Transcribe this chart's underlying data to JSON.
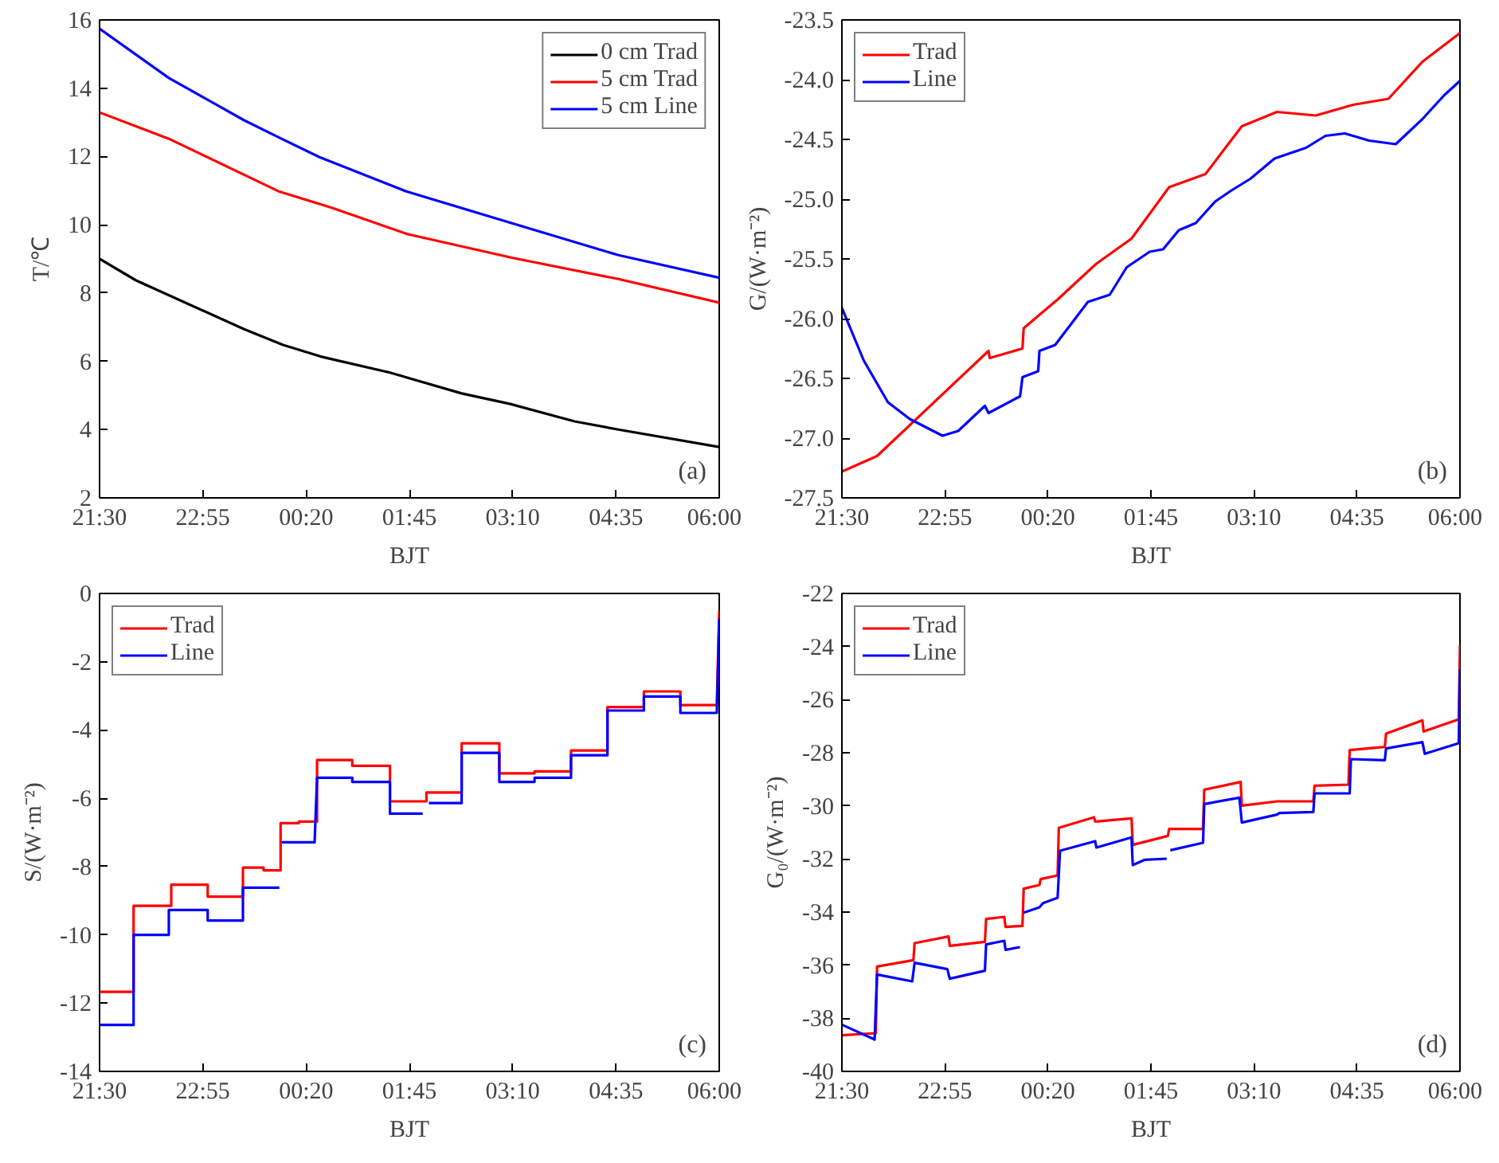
{
  "chart_data": [
    {
      "type": "line",
      "xlabel": "BJT",
      "ylabel": "T/℃",
      "annotations": [
        "(a)"
      ],
      "legend": "top right",
      "grid": false,
      "xlim": [
        "2000-01-01T21:30",
        "2000-01-02T06:00"
      ],
      "xticks": [
        {
          "value": "2000-01-01T21:30",
          "label": "21:30"
        },
        {
          "value": "2000-01-01T22:55",
          "label": "22:55"
        },
        {
          "value": "2000-01-02T00:20",
          "label": "00:20"
        },
        {
          "value": "2000-01-02T01:45",
          "label": "01:45"
        },
        {
          "value": "2000-01-02T03:10",
          "label": "03:10"
        },
        {
          "value": "2000-01-02T04:35",
          "label": "04:35"
        },
        {
          "value": "2000-01-02T06:00",
          "label": "06:00"
        }
      ],
      "ylim": [
        2,
        16
      ],
      "yticks": [
        2,
        4,
        6,
        8,
        10,
        12,
        14,
        16
      ],
      "series": [
        {
          "name": "0 cm Trad",
          "color": "#000000",
          "x": [
            "2000-01-01T21:30",
            "2000-01-01T22:00",
            "2000-01-01T23:29",
            "2000-01-02T00:01",
            "2000-01-02T00:32",
            "2000-01-02T01:29",
            "2000-01-02T02:28",
            "2000-01-02T03:08",
            "2000-01-02T04:01",
            "2000-01-02T04:37",
            "2000-01-02T06:00"
          ],
          "values": [
            9.0,
            8.37,
            6.94,
            6.48,
            6.14,
            5.67,
            5.06,
            4.75,
            4.24,
            4.0,
            3.49
          ]
        },
        {
          "name": "5 cm Trad",
          "color": "#ff0000",
          "x": [
            "2000-01-01T21:30",
            "2000-01-01T22:27",
            "2000-01-01T23:58",
            "2000-01-02T00:41",
            "2000-01-02T01:43",
            "2000-01-02T03:10",
            "2000-01-02T04:37",
            "2000-01-02T06:00"
          ],
          "values": [
            13.29,
            12.52,
            10.97,
            10.5,
            9.73,
            9.03,
            8.41,
            7.72
          ]
        },
        {
          "name": "5 cm Line",
          "color": "#0000ff",
          "x": [
            "2000-01-01T21:30",
            "2000-01-01T22:27",
            "2000-01-01T23:29",
            "2000-01-01T23:58",
            "2000-01-02T00:31",
            "2000-01-02T01:43",
            "2000-01-02T03:10",
            "2000-01-02T04:37",
            "2000-01-02T06:00"
          ],
          "values": [
            15.74,
            14.3,
            13.06,
            12.55,
            11.98,
            10.97,
            10.04,
            9.11,
            8.45
          ]
        }
      ]
    },
    {
      "type": "line",
      "xlabel": "BJT",
      "ylabel": "G/(W·m⁻²)",
      "annotations": [
        "(b)"
      ],
      "legend": "top left",
      "grid": false,
      "xlim": [
        "2000-01-01T21:30",
        "2000-01-02T06:00"
      ],
      "xticks": [
        {
          "value": "2000-01-01T21:30",
          "label": "21:30"
        },
        {
          "value": "2000-01-01T22:55",
          "label": "22:55"
        },
        {
          "value": "2000-01-02T00:20",
          "label": "00:20"
        },
        {
          "value": "2000-01-02T01:45",
          "label": "01:45"
        },
        {
          "value": "2000-01-02T03:10",
          "label": "03:10"
        },
        {
          "value": "2000-01-02T04:35",
          "label": "04:35"
        },
        {
          "value": "2000-01-02T06:00",
          "label": "06:00"
        }
      ],
      "ylim": [
        -27.5,
        -23.5
      ],
      "yticks": [
        {
          "value": -27.5,
          "label": "-27.5"
        },
        {
          "value": -27,
          "label": "-27.0"
        },
        {
          "value": -26.5,
          "label": "-26.5"
        },
        {
          "value": -26,
          "label": "-26.0"
        },
        {
          "value": -25.5,
          "label": "-25.5"
        },
        {
          "value": -25,
          "label": "-25.0"
        },
        {
          "value": -24.5,
          "label": "-24.5"
        },
        {
          "value": -24,
          "label": "-24.0"
        },
        {
          "value": -23.5,
          "label": "-23.5"
        }
      ],
      "series": [
        {
          "name": "Trad",
          "color": "#ff0000",
          "x": [
            "2000-01-01T21:30",
            "2000-01-01T21:59",
            "2000-01-01T23:31",
            "2000-01-01T23:32",
            "2000-01-01T23:59",
            "2000-01-02T00:00",
            "2000-01-02T00:28",
            "2000-01-02T01:00",
            "2000-01-02T01:29",
            "2000-01-02T02:00",
            "2000-01-02T02:30",
            "2000-01-02T03:00",
            "2000-01-02T03:29",
            "2000-01-02T04:01",
            "2000-01-02T04:32",
            "2000-01-02T05:01",
            "2000-01-02T05:29",
            "2000-01-02T06:00"
          ],
          "values": [
            -27.28,
            -27.15,
            -26.27,
            -26.33,
            -26.25,
            -26.08,
            -25.84,
            -25.54,
            -25.33,
            -24.9,
            -24.79,
            -24.39,
            -24.27,
            -24.3,
            -24.21,
            -24.16,
            -23.85,
            -23.61
          ]
        },
        {
          "name": "Line",
          "color": "#0000ff",
          "x": [
            "2000-01-01T21:30",
            "2000-01-01T21:48",
            "2000-01-01T22:08",
            "2000-01-01T22:26",
            "2000-01-01T22:53",
            "2000-01-01T23:06",
            "2000-01-01T23:28",
            "2000-01-01T23:31",
            "2000-01-01T23:57",
            "2000-01-01T23:59",
            "2000-01-02T00:12",
            "2000-01-02T00:13",
            "2000-01-02T00:26",
            "2000-01-02T00:53",
            "2000-01-02T01:11",
            "2000-01-02T01:25",
            "2000-01-02T01:44",
            "2000-01-02T01:55",
            "2000-01-02T02:08",
            "2000-01-02T02:22",
            "2000-01-02T02:38",
            "2000-01-02T02:51",
            "2000-01-02T03:07",
            "2000-01-02T03:27",
            "2000-01-02T03:53",
            "2000-01-02T04:09",
            "2000-01-02T04:25",
            "2000-01-02T04:45",
            "2000-01-02T05:07",
            "2000-01-02T05:29",
            "2000-01-02T05:47",
            "2000-01-02T06:00"
          ],
          "values": [
            -25.91,
            -26.35,
            -26.7,
            -26.84,
            -26.98,
            -26.94,
            -26.73,
            -26.79,
            -26.65,
            -26.49,
            -26.44,
            -26.27,
            -26.22,
            -25.86,
            -25.8,
            -25.57,
            -25.44,
            -25.42,
            -25.26,
            -25.2,
            -25.02,
            -24.93,
            -24.83,
            -24.66,
            -24.57,
            -24.47,
            -24.45,
            -24.51,
            -24.54,
            -24.33,
            -24.13,
            -24.01
          ]
        }
      ]
    },
    {
      "type": "line",
      "xlabel": "BJT",
      "ylabel": "S/(W·m⁻²)",
      "annotations": [
        "(c)"
      ],
      "legend": "top left",
      "grid": false,
      "xlim": [
        "2000-01-01T21:30",
        "2000-01-02T06:00"
      ],
      "xticks": [
        {
          "value": "2000-01-01T21:30",
          "label": "21:30"
        },
        {
          "value": "2000-01-01T22:55",
          "label": "22:55"
        },
        {
          "value": "2000-01-02T00:20",
          "label": "00:20"
        },
        {
          "value": "2000-01-02T01:45",
          "label": "01:45"
        },
        {
          "value": "2000-01-02T03:10",
          "label": "03:10"
        },
        {
          "value": "2000-01-02T04:35",
          "label": "04:35"
        },
        {
          "value": "2000-01-02T06:00",
          "label": "06:00"
        }
      ],
      "ylim": [
        -14,
        0
      ],
      "yticks": [
        -14,
        -12,
        -10,
        -8,
        -6,
        -4,
        -2,
        0
      ],
      "series": [
        {
          "name": "Trad",
          "color": "#ff0000",
          "x": [
            "2000-01-01T21:30",
            "2000-01-01T21:58",
            "2000-01-01T21:58",
            "2000-01-01T22:29",
            "2000-01-01T22:29",
            "2000-01-01T22:59",
            "2000-01-01T22:59",
            "2000-01-01T23:28",
            "2000-01-01T23:28",
            "2000-01-01T23:45",
            "2000-01-01T23:45",
            "2000-01-01T23:59",
            "2000-01-01T23:59",
            "2000-01-02T00:14",
            "2000-01-02T00:14",
            "2000-01-02T00:29",
            "2000-01-02T00:29",
            "2000-01-02T00:58",
            "2000-01-02T00:58",
            "2000-01-02T01:29",
            "2000-01-02T01:29",
            "2000-01-02T01:59",
            "2000-01-02T01:59",
            "2000-01-02T02:28",
            "2000-01-02T02:28",
            "2000-01-02T02:59",
            "2000-01-02T02:59",
            "2000-01-02T03:28",
            "2000-01-02T03:28",
            "2000-01-02T03:58",
            "2000-01-02T03:58",
            "2000-01-02T04:28",
            "2000-01-02T04:28",
            "2000-01-02T04:58",
            "2000-01-02T04:58",
            "2000-01-02T05:28",
            "2000-01-02T05:28",
            "2000-01-02T05:58",
            "2000-01-02T06:00"
          ],
          "values": [
            -11.67,
            -11.67,
            -9.15,
            -9.15,
            -8.53,
            -8.53,
            -8.88,
            -8.88,
            -8.03,
            -8.03,
            -8.11,
            -8.11,
            -6.73,
            -6.73,
            -6.68,
            -6.68,
            -4.88,
            -4.88,
            -5.05,
            -5.05,
            -6.09,
            -6.09,
            -5.83,
            -5.83,
            -4.39,
            -4.39,
            -5.27,
            -5.27,
            -5.21,
            -5.21,
            -4.6,
            -4.6,
            -3.33,
            -3.33,
            -2.87,
            -2.87,
            -3.27,
            -3.27,
            -0.51
          ]
        },
        {
          "name": "Line",
          "color": "#0000ff",
          "x": [
            "2000-01-01T21:30",
            "2000-01-01T21:58",
            "2000-01-01T21:58",
            "2000-01-01T22:27",
            "2000-01-01T22:27",
            "2000-01-01T22:59",
            "2000-01-01T22:59",
            "2000-01-01T23:28",
            "2000-01-01T23:28",
            "2000-01-01T23:58",
            "2000-01-01T23:59",
            "2000-01-02T00:00",
            "2000-01-02T00:27",
            "2000-01-02T00:29",
            "2000-01-02T00:58",
            "2000-01-02T00:58",
            "2000-01-02T01:29",
            "2000-01-02T01:29",
            "2000-01-02T01:56",
            "2000-01-02T01:57",
            "2000-01-02T02:01",
            "2000-01-02T02:28",
            "2000-01-02T02:28",
            "2000-01-02T02:59",
            "2000-01-02T02:59",
            "2000-01-02T03:28",
            "2000-01-02T03:28",
            "2000-01-02T03:58",
            "2000-01-02T03:58",
            "2000-01-02T04:28",
            "2000-01-02T04:28",
            "2000-01-02T04:58",
            "2000-01-02T04:58",
            "2000-01-02T05:28",
            "2000-01-02T05:28",
            "2000-01-02T05:58",
            "2000-01-02T06:00"
          ],
          "values": [
            -12.64,
            -12.64,
            -10.0,
            -10.0,
            -9.27,
            -9.27,
            -9.58,
            -9.58,
            -8.62,
            -8.62,
            null,
            -7.29,
            -7.29,
            -5.4,
            -5.4,
            -5.52,
            -5.52,
            -6.45,
            -6.45,
            null,
            -6.14,
            -6.14,
            -4.67,
            -4.67,
            -5.52,
            -5.52,
            -5.4,
            -5.4,
            -4.74,
            -4.74,
            -3.43,
            -3.43,
            -3.02,
            -3.02,
            -3.5,
            -3.5,
            -0.74
          ]
        }
      ]
    },
    {
      "type": "line",
      "xlabel": "BJT",
      "ylabel": "G₀/(W·m⁻²)",
      "annotations": [
        "(d)"
      ],
      "legend": "top left",
      "grid": false,
      "xlim": [
        "2000-01-01T21:30",
        "2000-01-02T06:00"
      ],
      "xticks": [
        {
          "value": "2000-01-01T21:30",
          "label": "21:30"
        },
        {
          "value": "2000-01-01T22:55",
          "label": "22:55"
        },
        {
          "value": "2000-01-02T00:20",
          "label": "00:20"
        },
        {
          "value": "2000-01-02T01:45",
          "label": "01:45"
        },
        {
          "value": "2000-01-02T03:10",
          "label": "03:10"
        },
        {
          "value": "2000-01-02T04:35",
          "label": "04:35"
        },
        {
          "value": "2000-01-02T06:00",
          "label": "06:00"
        }
      ],
      "ylim": [
        -40,
        -22
      ],
      "yticks": [
        -40,
        -38,
        -36,
        -34,
        -32,
        -30,
        -28,
        -26,
        -24,
        -22
      ],
      "series": [
        {
          "name": "Trad",
          "color": "#ff0000",
          "x": [
            "2000-01-01T21:30",
            "2000-01-01T21:58",
            "2000-01-01T21:59",
            "2000-01-01T22:29",
            "2000-01-01T22:30",
            "2000-01-01T22:58",
            "2000-01-01T22:59",
            "2000-01-01T23:28",
            "2000-01-01T23:29",
            "2000-01-01T23:44",
            "2000-01-01T23:45",
            "2000-01-01T23:59",
            "2000-01-02T00:00",
            "2000-01-02T00:13",
            "2000-01-02T00:14",
            "2000-01-02T00:28",
            "2000-01-02T00:29",
            "2000-01-02T00:58",
            "2000-01-02T00:59",
            "2000-01-02T01:29",
            "2000-01-02T01:30",
            "2000-01-02T01:59",
            "2000-01-02T02:00",
            "2000-01-02T02:28",
            "2000-01-02T02:29",
            "2000-01-02T02:59",
            "2000-01-02T03:00",
            "2000-01-02T03:29",
            "2000-01-02T03:59",
            "2000-01-02T04:00",
            "2000-01-02T04:28",
            "2000-01-02T04:29",
            "2000-01-02T04:58",
            "2000-01-02T04:59",
            "2000-01-02T05:29",
            "2000-01-02T05:30",
            "2000-01-02T05:59",
            "2000-01-02T06:00"
          ],
          "values": [
            -38.64,
            -38.56,
            -36.05,
            -35.81,
            -35.17,
            -34.92,
            -35.27,
            -35.12,
            -34.26,
            -34.18,
            -34.56,
            -34.52,
            -33.12,
            -32.98,
            -32.76,
            -32.62,
            -30.83,
            -30.43,
            -30.59,
            -30.47,
            -31.47,
            -31.13,
            -30.87,
            -30.87,
            -29.39,
            -29.1,
            -29.99,
            -29.83,
            -29.83,
            -29.24,
            -29.2,
            -27.9,
            -27.78,
            -27.28,
            -26.78,
            -27.2,
            -26.74,
            -23.95
          ]
        },
        {
          "name": "Line",
          "color": "#0000ff",
          "x": [
            "2000-01-01T21:30",
            "2000-01-01T21:57",
            "2000-01-01T21:59",
            "2000-01-01T22:28",
            "2000-01-01T22:30",
            "2000-01-01T22:57",
            "2000-01-01T22:59",
            "2000-01-01T23:28",
            "2000-01-01T23:29",
            "2000-01-01T23:44",
            "2000-01-01T23:45",
            "2000-01-01T23:57",
            "2000-01-01T23:58",
            "2000-01-02T00:00",
            "2000-01-02T00:13",
            "2000-01-02T00:16",
            "2000-01-02T00:28",
            "2000-01-02T00:30",
            "2000-01-02T00:59",
            "2000-01-02T01:00",
            "2000-01-02T01:29",
            "2000-01-02T01:30",
            "2000-01-02T01:40",
            "2000-01-02T01:58",
            "2000-01-02T01:59",
            "2000-01-02T02:01",
            "2000-01-02T02:28",
            "2000-01-02T02:29",
            "2000-01-02T02:58",
            "2000-01-02T03:00",
            "2000-01-02T03:29",
            "2000-01-02T03:31",
            "2000-01-02T03:59",
            "2000-01-02T04:00",
            "2000-01-02T04:29",
            "2000-01-02T04:30",
            "2000-01-02T04:58",
            "2000-01-02T04:59",
            "2000-01-02T05:29",
            "2000-01-02T05:31",
            "2000-01-02T05:59",
            "2000-01-02T06:00"
          ],
          "values": [
            -38.24,
            -38.8,
            -36.35,
            -36.61,
            -35.91,
            -36.15,
            -36.51,
            -36.21,
            -35.22,
            -35.08,
            -35.42,
            -35.32,
            null,
            -34.02,
            -33.82,
            -33.66,
            -33.46,
            -31.69,
            -31.33,
            -31.57,
            -31.19,
            -32.23,
            -32.03,
            -31.99,
            null,
            -31.67,
            -31.39,
            -29.93,
            -29.69,
            -30.63,
            -30.33,
            -30.27,
            -30.23,
            -29.53,
            -29.53,
            -28.24,
            -28.28,
            -27.84,
            -27.6,
            -28.04,
            -27.64,
            -24.85
          ]
        }
      ]
    }
  ]
}
